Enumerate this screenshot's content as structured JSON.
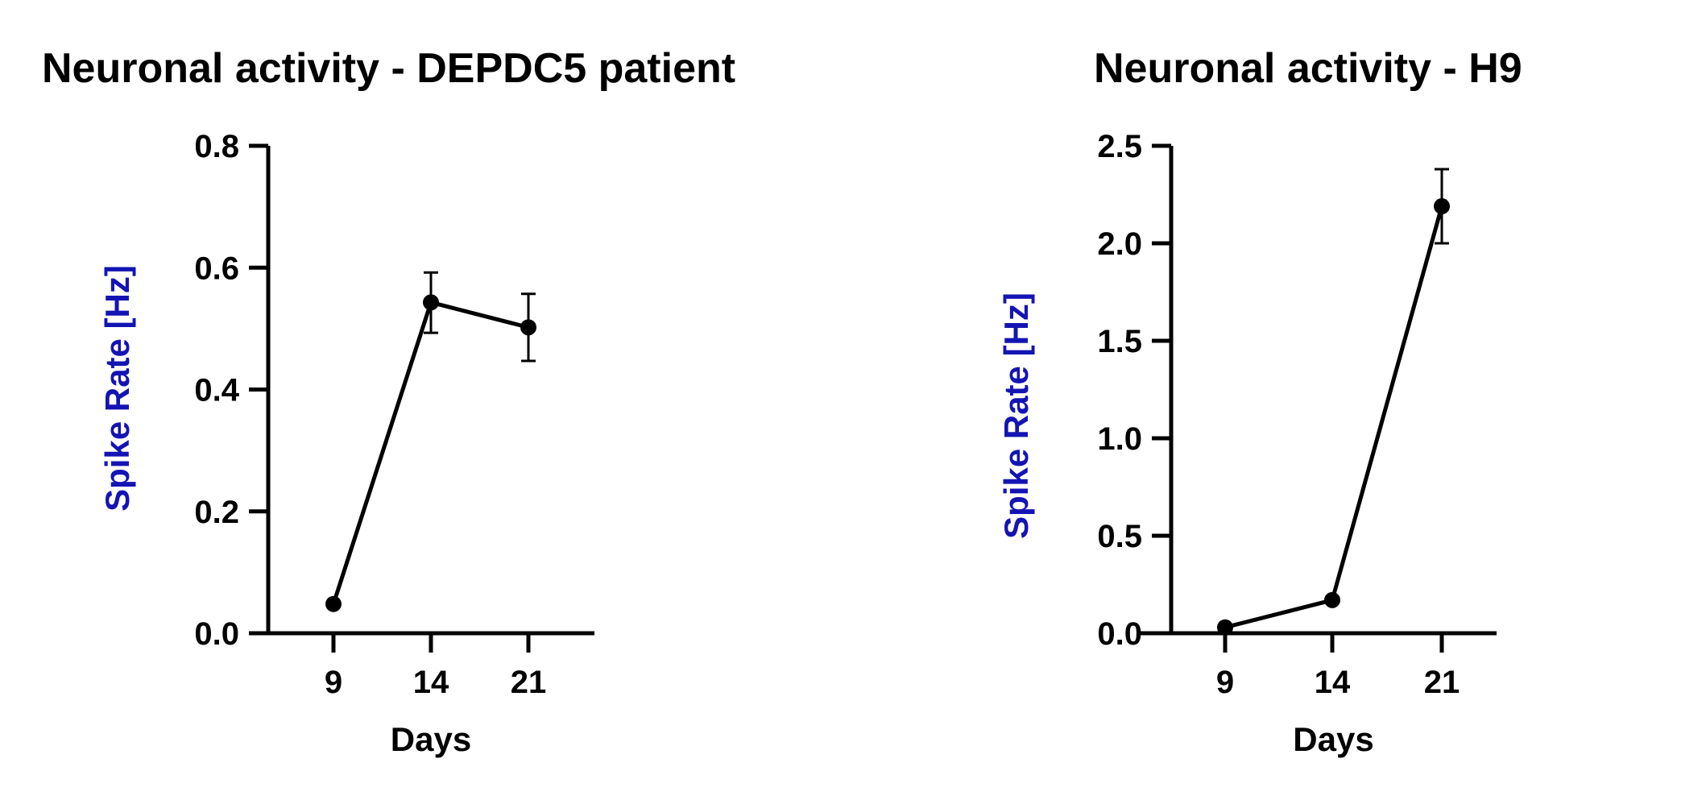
{
  "chart_data": [
    {
      "type": "line",
      "title": "Neuronal activity - DEPDC5 patient",
      "xlabel": "Days",
      "ylabel": "Spike Rate [Hz]",
      "categories": [
        "9",
        "14",
        "21"
      ],
      "values": [
        0.048,
        0.543,
        0.502
      ],
      "error_low": [
        null,
        0.493,
        0.447
      ],
      "error_high": [
        null,
        0.592,
        0.557
      ],
      "ylim": [
        0,
        0.8
      ],
      "yticks": [
        "0.0",
        "0.2",
        "0.4",
        "0.6",
        "0.8"
      ],
      "grid": false
    },
    {
      "type": "line",
      "title": "Neuronal activity - H9",
      "xlabel": "Days",
      "ylabel": "Spike Rate [Hz]",
      "categories": [
        "9",
        "14",
        "21"
      ],
      "values": [
        0.03,
        0.17,
        2.19
      ],
      "error_low": [
        null,
        null,
        2.0
      ],
      "error_high": [
        null,
        null,
        2.38
      ],
      "ylim": [
        0,
        2.5
      ],
      "yticks": [
        "0.0",
        "0.5",
        "1.0",
        "1.5",
        "2.0",
        "2.5"
      ],
      "grid": false
    }
  ],
  "colors": {
    "ylabel": "#1414b4",
    "line": "#000000"
  }
}
